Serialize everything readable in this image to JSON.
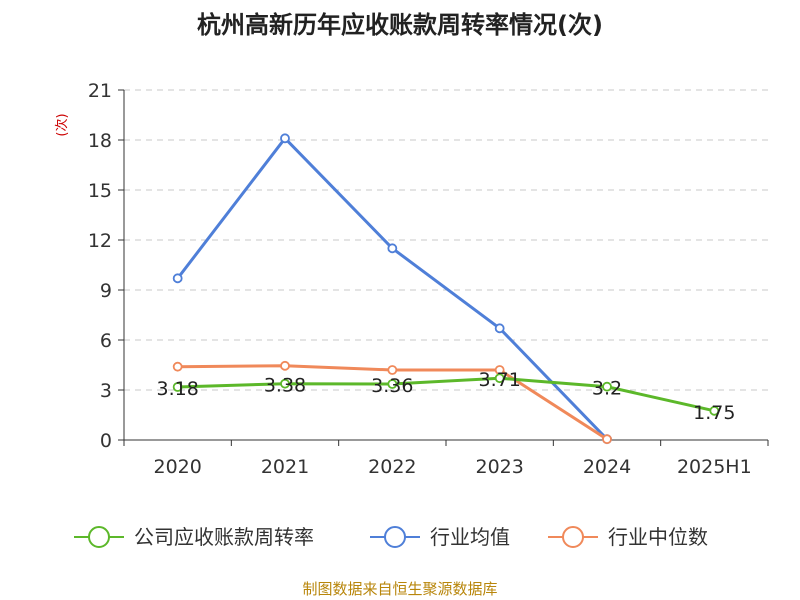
{
  "chart_data": {
    "type": "line",
    "title": "杭州高新历年应收账款周转率情况(次)",
    "unit_label": "(次)",
    "categories": [
      "2020",
      "2021",
      "2022",
      "2023",
      "2024",
      "2025H1"
    ],
    "ylim": [
      0,
      21
    ],
    "yticks": [
      0,
      3,
      6,
      9,
      12,
      15,
      18,
      21
    ],
    "grid": true,
    "legend_position": "bottom",
    "series": [
      {
        "name": "公司应收账款周转率",
        "color": "#5cb82a",
        "values": [
          3.18,
          3.38,
          3.36,
          3.71,
          3.2,
          1.75
        ],
        "labels": [
          "3.18",
          "3.38",
          "3.36",
          "3.71",
          "3.2",
          "1.75"
        ]
      },
      {
        "name": "行业均值",
        "color": "#4f7fd8",
        "values": [
          9.7,
          18.1,
          11.5,
          6.7,
          0.05,
          null
        ]
      },
      {
        "name": "行业中位数",
        "color": "#f0895a",
        "values": [
          4.4,
          4.45,
          4.2,
          4.2,
          0.05,
          null
        ]
      }
    ],
    "source": "制图数据来自恒生聚源数据库"
  }
}
